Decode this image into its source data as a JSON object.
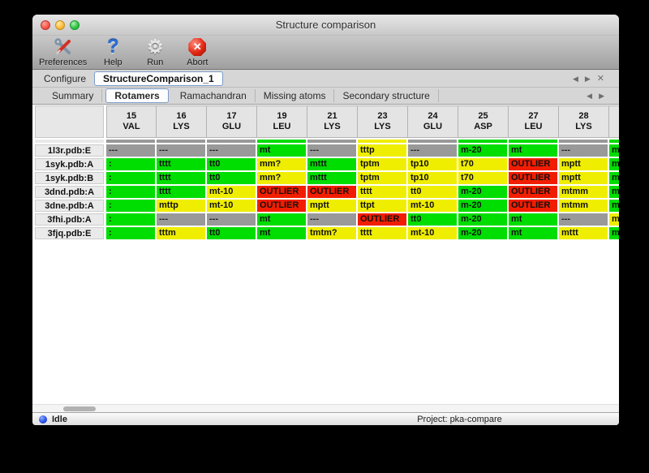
{
  "window": {
    "title": "Structure comparison"
  },
  "toolbar": {
    "items": [
      {
        "label": "Preferences",
        "icon": "tools-icon"
      },
      {
        "label": "Help",
        "icon": "help-icon",
        "glyph": "?"
      },
      {
        "label": "Run",
        "icon": "gear-icon",
        "glyph": "⚙"
      },
      {
        "label": "Abort",
        "icon": "abort-icon",
        "glyph": "✕"
      }
    ]
  },
  "configure": {
    "label": "Configure",
    "name": "StructureComparison_1",
    "nav": {
      "prev": "◀",
      "next": "▶",
      "close": "✕"
    }
  },
  "tabs": {
    "items": [
      "Summary",
      "Rotamers",
      "Ramachandran",
      "Missing atoms",
      "Secondary structure"
    ],
    "selected": "Rotamers",
    "nav": {
      "prev": "◀",
      "next": "▶"
    }
  },
  "table": {
    "columns": [
      {
        "num": "15",
        "res": "VAL"
      },
      {
        "num": "16",
        "res": "LYS"
      },
      {
        "num": "17",
        "res": "GLU"
      },
      {
        "num": "19",
        "res": "LEU"
      },
      {
        "num": "21",
        "res": "LYS"
      },
      {
        "num": "23",
        "res": "LYS"
      },
      {
        "num": "24",
        "res": "GLU"
      },
      {
        "num": "25",
        "res": "ASP"
      },
      {
        "num": "27",
        "res": "LEU"
      },
      {
        "num": "28",
        "res": "LYS"
      },
      {
        "num": "",
        "res": ""
      }
    ],
    "strip_colors": [
      "gray",
      "gray",
      "gray",
      "green",
      "gray",
      "yellow",
      "gray",
      "green",
      "green",
      "gray",
      "green"
    ],
    "rows": [
      {
        "label": "1l3r.pdb:E",
        "cells": [
          {
            "text": "---",
            "color": "gray"
          },
          {
            "text": "---",
            "color": "gray"
          },
          {
            "text": "---",
            "color": "gray"
          },
          {
            "text": "mt",
            "color": "green"
          },
          {
            "text": "---",
            "color": "gray"
          },
          {
            "text": "tttp",
            "color": "yellow"
          },
          {
            "text": "---",
            "color": "gray"
          },
          {
            "text": "m-20",
            "color": "green"
          },
          {
            "text": "mt",
            "color": "green"
          },
          {
            "text": "---",
            "color": "gray"
          },
          {
            "text": "m",
            "color": "green"
          }
        ]
      },
      {
        "label": "1syk.pdb:A",
        "cells": [
          {
            "text": ":",
            "color": "green"
          },
          {
            "text": "tttt",
            "color": "green"
          },
          {
            "text": "tt0",
            "color": "green"
          },
          {
            "text": "mm?",
            "color": "yellow"
          },
          {
            "text": "mttt",
            "color": "green"
          },
          {
            "text": "tptm",
            "color": "yellow"
          },
          {
            "text": "tp10",
            "color": "yellow"
          },
          {
            "text": "t70",
            "color": "yellow"
          },
          {
            "text": "OUTLIER",
            "color": "red"
          },
          {
            "text": "mptt",
            "color": "yellow"
          },
          {
            "text": "m",
            "color": "green"
          }
        ]
      },
      {
        "label": "1syk.pdb:B",
        "cells": [
          {
            "text": ":",
            "color": "green"
          },
          {
            "text": "tttt",
            "color": "green"
          },
          {
            "text": "tt0",
            "color": "green"
          },
          {
            "text": "mm?",
            "color": "yellow"
          },
          {
            "text": "mttt",
            "color": "green"
          },
          {
            "text": "tptm",
            "color": "yellow"
          },
          {
            "text": "tp10",
            "color": "yellow"
          },
          {
            "text": "t70",
            "color": "yellow"
          },
          {
            "text": "OUTLIER",
            "color": "red"
          },
          {
            "text": "mptt",
            "color": "yellow"
          },
          {
            "text": "m",
            "color": "green"
          }
        ]
      },
      {
        "label": "3dnd.pdb:A",
        "cells": [
          {
            "text": ":",
            "color": "green"
          },
          {
            "text": "tttt",
            "color": "green"
          },
          {
            "text": "mt-10",
            "color": "yellow"
          },
          {
            "text": "OUTLIER",
            "color": "red"
          },
          {
            "text": "OUTLIER",
            "color": "red"
          },
          {
            "text": "tttt",
            "color": "yellow"
          },
          {
            "text": "tt0",
            "color": "yellow"
          },
          {
            "text": "m-20",
            "color": "green"
          },
          {
            "text": "OUTLIER",
            "color": "red"
          },
          {
            "text": "mtmm",
            "color": "yellow"
          },
          {
            "text": "m",
            "color": "green"
          }
        ]
      },
      {
        "label": "3dne.pdb:A",
        "cells": [
          {
            "text": ":",
            "color": "green"
          },
          {
            "text": "mttp",
            "color": "yellow"
          },
          {
            "text": "mt-10",
            "color": "yellow"
          },
          {
            "text": "OUTLIER",
            "color": "red"
          },
          {
            "text": "mptt",
            "color": "yellow"
          },
          {
            "text": "ttpt",
            "color": "yellow"
          },
          {
            "text": "mt-10",
            "color": "yellow"
          },
          {
            "text": "m-20",
            "color": "green"
          },
          {
            "text": "OUTLIER",
            "color": "red"
          },
          {
            "text": "mtmm",
            "color": "yellow"
          },
          {
            "text": "m",
            "color": "green"
          }
        ]
      },
      {
        "label": "3fhi.pdb:A",
        "cells": [
          {
            "text": ":",
            "color": "green"
          },
          {
            "text": "---",
            "color": "gray"
          },
          {
            "text": "---",
            "color": "gray"
          },
          {
            "text": "mt",
            "color": "green"
          },
          {
            "text": "---",
            "color": "gray"
          },
          {
            "text": "OUTLIER",
            "color": "red"
          },
          {
            "text": "tt0",
            "color": "green"
          },
          {
            "text": "m-20",
            "color": "green"
          },
          {
            "text": "mt",
            "color": "green"
          },
          {
            "text": "---",
            "color": "gray"
          },
          {
            "text": "m",
            "color": "yellow"
          }
        ]
      },
      {
        "label": "3fjq.pdb:E",
        "cells": [
          {
            "text": ":",
            "color": "green"
          },
          {
            "text": "tttm",
            "color": "yellow"
          },
          {
            "text": "tt0",
            "color": "green"
          },
          {
            "text": "mt",
            "color": "green"
          },
          {
            "text": "tmtm?",
            "color": "yellow"
          },
          {
            "text": "tttt",
            "color": "yellow"
          },
          {
            "text": "mt-10",
            "color": "yellow"
          },
          {
            "text": "m-20",
            "color": "green"
          },
          {
            "text": "mt",
            "color": "green"
          },
          {
            "text": "mttt",
            "color": "yellow"
          },
          {
            "text": "m",
            "color": "green"
          }
        ]
      }
    ]
  },
  "statusbar": {
    "status": "Idle",
    "project": "Project: pka-compare"
  },
  "colors": {
    "green": "#00dd00",
    "yellow": "#f0ee00",
    "red": "#f21d00",
    "gray": "#999999"
  }
}
